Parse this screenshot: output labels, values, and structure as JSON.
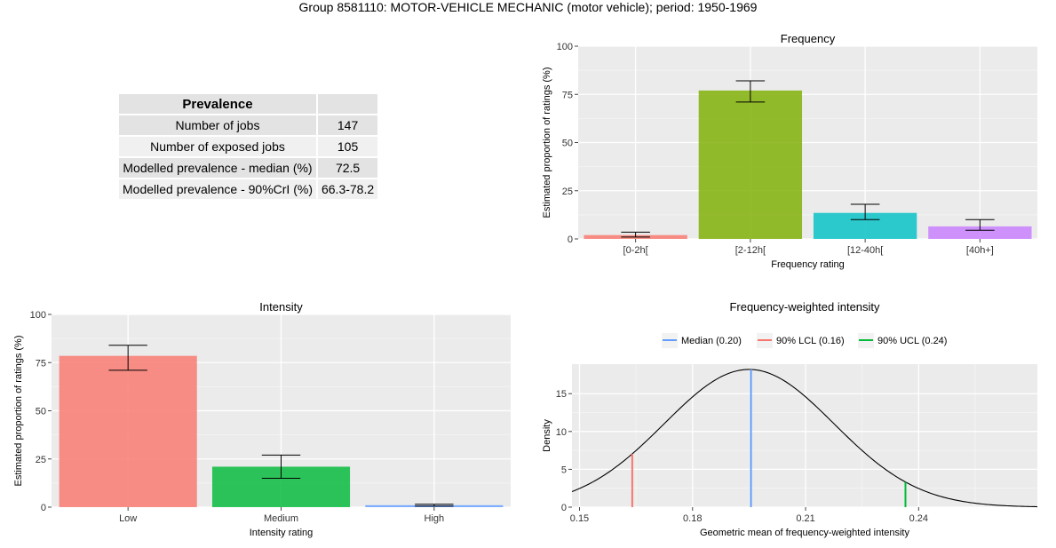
{
  "main_title": "Group 8581110: MOTOR-VEHICLE MECHANIC (motor vehicle); period: 1950-1969",
  "prevalence_table": {
    "header": "Prevalence",
    "rows": [
      {
        "label": "Number of jobs",
        "value": "147"
      },
      {
        "label": "Number of exposed jobs",
        "value": "105"
      },
      {
        "label": "Modelled prevalence - median (%)",
        "value": "72.5"
      },
      {
        "label": "Modelled prevalence - 90%CrI (%)",
        "value": "66.3-78.2"
      }
    ]
  },
  "chart_data": [
    {
      "id": "frequency",
      "type": "bar",
      "title": "Frequency",
      "xlabel": "Frequency rating",
      "ylabel": "Estimated proportion of ratings (%)",
      "categories": [
        "[0-2h[",
        "[2-12h[",
        "[12-40h[",
        "[40h+]"
      ],
      "values": [
        2,
        77,
        13.5,
        6.5
      ],
      "error_low": [
        1,
        71,
        10,
        4.5
      ],
      "error_high": [
        3.5,
        82,
        18,
        10
      ],
      "colors": [
        "#f8766d",
        "#7cae00",
        "#00bfc4",
        "#c77cff"
      ],
      "ylim": [
        0,
        100
      ],
      "yticks": [
        0,
        25,
        50,
        75,
        100
      ],
      "grid": true
    },
    {
      "id": "intensity",
      "type": "bar",
      "title": "Intensity",
      "xlabel": "Intensity rating",
      "ylabel": "Estimated proportion of ratings (%)",
      "categories": [
        "Low",
        "Medium",
        "High"
      ],
      "values": [
        78.5,
        21,
        1
      ],
      "error_low": [
        71,
        15,
        0.5
      ],
      "error_high": [
        84,
        27,
        1.5
      ],
      "colors": [
        "#f8766d",
        "#00ba38",
        "#619cff"
      ],
      "ylim": [
        0,
        100
      ],
      "yticks": [
        0,
        25,
        50,
        75,
        100
      ],
      "grid": true
    },
    {
      "id": "fwi",
      "type": "line",
      "title": "Frequency-weighted intensity",
      "xlabel": "Geometric mean of frequency-weighted intensity",
      "ylabel": "Density",
      "xlim": [
        0.148,
        0.2715
      ],
      "ylim": [
        0,
        18.9
      ],
      "xticks": [
        0.15,
        0.18,
        0.21,
        0.24
      ],
      "xtick_labels": [
        "0.15",
        "0.18",
        "0.21",
        "0.24"
      ],
      "yticks": [
        0,
        5,
        10,
        15
      ],
      "density_curve": {
        "mean": 0.195,
        "sd": 0.0225,
        "peak": 18.2
      },
      "vlines": [
        {
          "name": "Median (0.20)",
          "x": 0.1955,
          "color": "#619cff"
        },
        {
          "name": "90% LCL (0.16)",
          "x": 0.164,
          "color": "#f8766d"
        },
        {
          "name": "90% UCL (0.24)",
          "x": 0.2365,
          "color": "#00ba38"
        }
      ],
      "legend_position": "top",
      "grid": true
    }
  ]
}
